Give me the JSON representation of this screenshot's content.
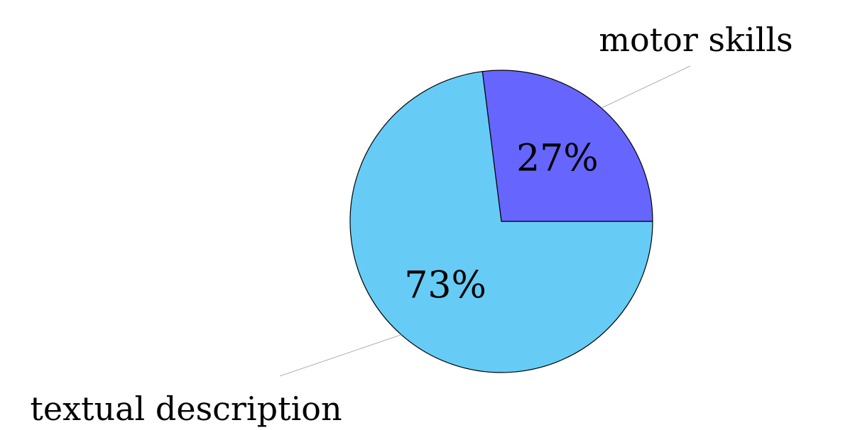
{
  "chart_data": {
    "type": "pie",
    "title": "",
    "slices": [
      {
        "name": "motor skills",
        "value": 27,
        "label": "27%",
        "color": "#6666ff"
      },
      {
        "name": "textual description",
        "value": 73,
        "label": "73%",
        "color": "#66ccf5"
      }
    ],
    "start_angle_deg": 0,
    "direction": "counterclockwise",
    "legend": "none"
  }
}
